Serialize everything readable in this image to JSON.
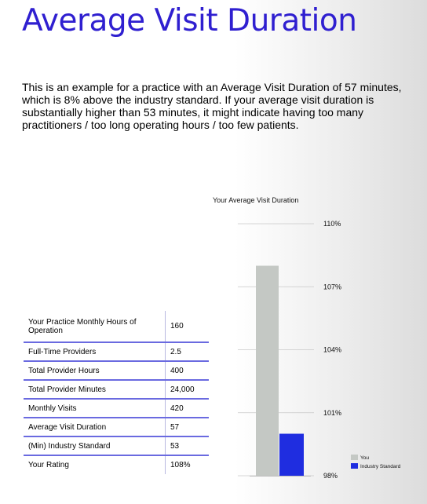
{
  "title": "Average Visit Duration",
  "intro": "This is an example for a practice with an Average Visit Duration of 57 minutes, which is 8% above the industry standard. If your average visit duration is substantially higher than 53 minutes, it might indicate having too many practitioners / too long operating hours / too few patients.",
  "colors": {
    "title": "#2f1fd0",
    "you_bar": "#c4c8c4",
    "industry_bar": "#1f2de0",
    "grid": "#c8c8c8"
  },
  "metrics_table": [
    {
      "label": "Your Practice Monthly Hours of Operation",
      "value": "160"
    },
    {
      "label": "Full-Time Providers",
      "value": "2.5"
    },
    {
      "label": "Total Provider Hours",
      "value": "400"
    },
    {
      "label": "Total Provider Minutes",
      "value": "24,000"
    },
    {
      "label": "Monthly Visits",
      "value": "420"
    },
    {
      "label": "Average Visit Duration",
      "value": "57"
    },
    {
      "label": "(Min) Industry Standard",
      "value": "53"
    },
    {
      "label": "Your Rating",
      "value": "108%"
    }
  ],
  "chart_data": {
    "type": "bar",
    "title": "Your Average Visit Duration",
    "ylim": [
      98,
      110
    ],
    "yticks": [
      "110%",
      "107%",
      "104%",
      "101%",
      "98%"
    ],
    "ytick_values": [
      110,
      107,
      104,
      101,
      98
    ],
    "series": [
      {
        "name": "You",
        "value": 108
      },
      {
        "name": "Industry Standard",
        "value": 100
      }
    ],
    "grid": true,
    "legend_position": "bottom-right"
  }
}
